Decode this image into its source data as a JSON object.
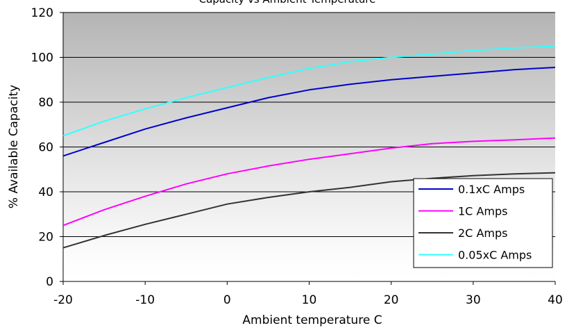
{
  "chart_data": {
    "type": "line",
    "title": "Capacity vs Ambient Temperature",
    "xlabel": "Ambient temperature  C",
    "ylabel": "% Available Capacity",
    "xlim": [
      -20,
      40
    ],
    "ylim": [
      0,
      120
    ],
    "xticks": [
      -20,
      -10,
      0,
      10,
      20,
      30,
      40
    ],
    "yticks": [
      0,
      20,
      40,
      60,
      80,
      100,
      120
    ],
    "grid": true,
    "legend_position": "bottom-right",
    "series": [
      {
        "name": "0.1xC Amps",
        "color": "#0000cc",
        "points": [
          [
            -20,
            56
          ],
          [
            -15,
            62
          ],
          [
            -10,
            68
          ],
          [
            -5,
            73
          ],
          [
            0,
            77.5
          ],
          [
            5,
            82
          ],
          [
            10,
            85.5
          ],
          [
            15,
            88
          ],
          [
            20,
            90
          ],
          [
            25,
            91.5
          ],
          [
            30,
            93
          ],
          [
            35,
            94.5
          ],
          [
            40,
            95.5
          ]
        ]
      },
      {
        "name": "1C Amps",
        "color": "#ff00ff",
        "points": [
          [
            -20,
            25
          ],
          [
            -15,
            32
          ],
          [
            -10,
            38
          ],
          [
            -5,
            43.5
          ],
          [
            0,
            48
          ],
          [
            5,
            51.5
          ],
          [
            10,
            54.5
          ],
          [
            15,
            57
          ],
          [
            20,
            59.5
          ],
          [
            25,
            61.5
          ],
          [
            30,
            62.5
          ],
          [
            35,
            63.2
          ],
          [
            40,
            64
          ]
        ]
      },
      {
        "name": "2C Amps",
        "color": "#333333",
        "points": [
          [
            -20,
            15
          ],
          [
            -15,
            20.5
          ],
          [
            -10,
            25.5
          ],
          [
            -5,
            30
          ],
          [
            0,
            34.5
          ],
          [
            5,
            37.5
          ],
          [
            10,
            40
          ],
          [
            15,
            42
          ],
          [
            20,
            44.5
          ],
          [
            25,
            46
          ],
          [
            30,
            47.2
          ],
          [
            35,
            48
          ],
          [
            40,
            48.5
          ]
        ]
      },
      {
        "name": "0.05xC Amps",
        "color": "#33ffff",
        "points": [
          [
            -20,
            65
          ],
          [
            -15,
            71.5
          ],
          [
            -10,
            77
          ],
          [
            -5,
            82
          ],
          [
            0,
            86.5
          ],
          [
            5,
            91
          ],
          [
            10,
            95
          ],
          [
            15,
            98
          ],
          [
            20,
            100
          ],
          [
            25,
            101.5
          ],
          [
            30,
            103
          ],
          [
            35,
            104.2
          ],
          [
            40,
            105
          ]
        ]
      }
    ]
  }
}
